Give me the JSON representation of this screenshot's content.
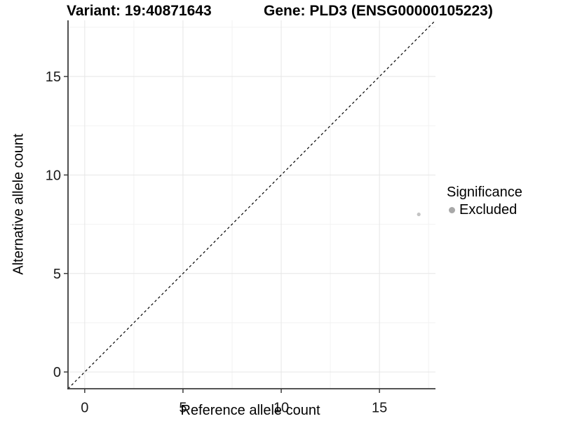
{
  "chart_data": {
    "type": "scatter",
    "title_left": "Variant: 19:40871643",
    "title_right": "Gene: PLD3 (ENSG00000105223)",
    "xlabel": "Reference allele count",
    "ylabel": "Alternative allele count",
    "xlim": [
      -0.85,
      17.85
    ],
    "ylim": [
      -0.85,
      17.85
    ],
    "x_ticks": [
      0,
      5,
      10,
      15
    ],
    "y_ticks": [
      0,
      5,
      10,
      15
    ],
    "x_minor_ticks": [
      2.5,
      7.5,
      12.5,
      17.5
    ],
    "y_minor_ticks": [
      2.5,
      7.5,
      12.5,
      17.5
    ],
    "grid": true,
    "legend_position": "right",
    "series": [
      {
        "name": "Excluded",
        "color": "#c4c4c4",
        "point_radius": 2.6,
        "points": [
          {
            "x": 17,
            "y": 8
          }
        ]
      }
    ],
    "reference_line": {
      "type": "identity",
      "slope": 1,
      "intercept": 0,
      "style": "dashed",
      "color": "#000000"
    },
    "legend": {
      "title": "Significance",
      "entries": [
        {
          "label": "Excluded",
          "color": "#a8a8a8"
        }
      ]
    },
    "colors": {
      "background": "#ffffff",
      "grid_major": "#e6e6e6",
      "grid_minor": "#f2f2f2",
      "axis_line": "#3c3c3c",
      "tick_label": "#1a1a1a"
    }
  }
}
